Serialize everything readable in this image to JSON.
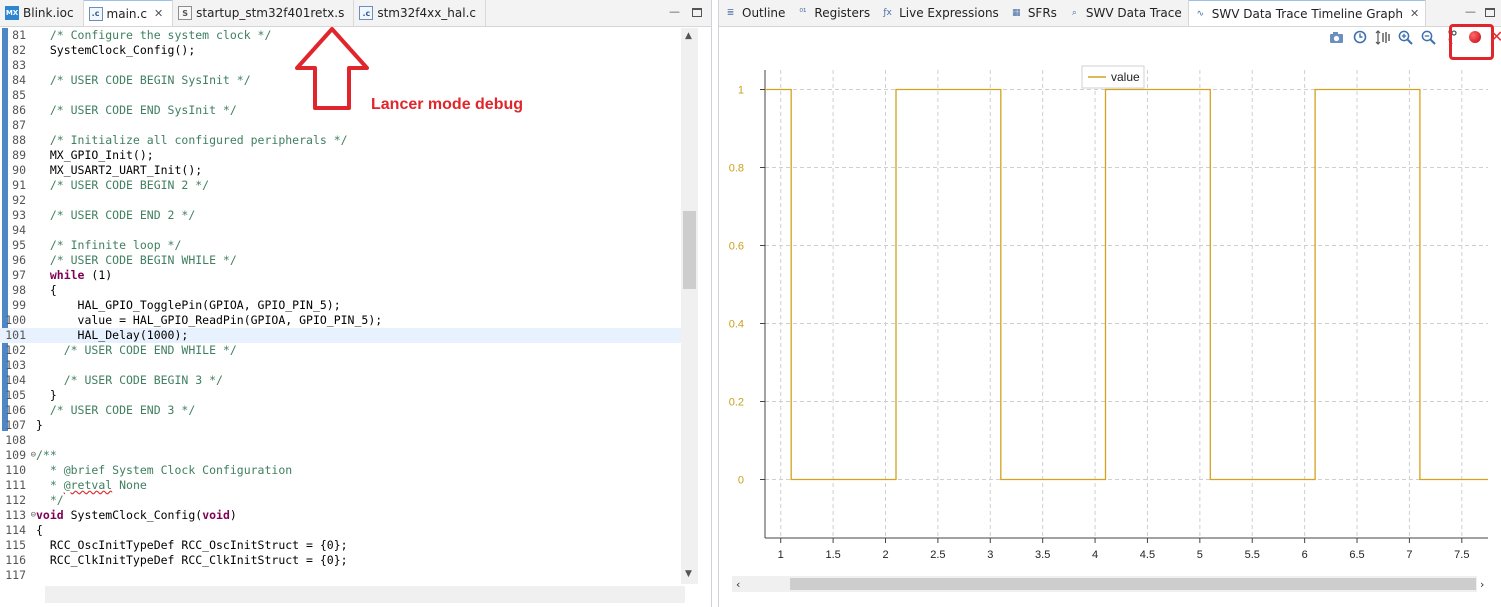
{
  "editor": {
    "tabs": [
      {
        "label": "Blink.ioc",
        "icon": "mx-file-icon",
        "active": false,
        "closable": false
      },
      {
        "label": "main.c",
        "icon": "c-file-icon",
        "active": true,
        "closable": true
      },
      {
        "label": "startup_stm32f401retx.s",
        "icon": "s-file-icon",
        "active": false,
        "closable": false
      },
      {
        "label": "stm32f4xx_hal.c",
        "icon": "c-file-icon",
        "active": false,
        "closable": false
      }
    ],
    "code_lines": [
      {
        "num": "81",
        "text": "  /* Configure the system clock */",
        "kind": "comment"
      },
      {
        "num": "82",
        "text": "  SystemClock_Config();",
        "kind": "code"
      },
      {
        "num": "83",
        "text": "",
        "kind": "code"
      },
      {
        "num": "84",
        "text": "  /* USER CODE BEGIN SysInit */",
        "kind": "comment"
      },
      {
        "num": "85",
        "text": "",
        "kind": "code"
      },
      {
        "num": "86",
        "text": "  /* USER CODE END SysInit */",
        "kind": "comment"
      },
      {
        "num": "87",
        "text": "",
        "kind": "code"
      },
      {
        "num": "88",
        "text": "  /* Initialize all configured peripherals */",
        "kind": "comment"
      },
      {
        "num": "89",
        "text": "  MX_GPIO_Init();",
        "kind": "code"
      },
      {
        "num": "90",
        "text": "  MX_USART2_UART_Init();",
        "kind": "code"
      },
      {
        "num": "91",
        "text": "  /* USER CODE BEGIN 2 */",
        "kind": "comment"
      },
      {
        "num": "92",
        "text": "",
        "kind": "code"
      },
      {
        "num": "93",
        "text": "  /* USER CODE END 2 */",
        "kind": "comment"
      },
      {
        "num": "94",
        "text": "",
        "kind": "code"
      },
      {
        "num": "95",
        "text": "  /* Infinite loop */",
        "kind": "comment"
      },
      {
        "num": "96",
        "text": "  /* USER CODE BEGIN WHILE */",
        "kind": "comment"
      },
      {
        "num": "97",
        "text": "  while (1)",
        "kind": "while"
      },
      {
        "num": "98",
        "text": "  {",
        "kind": "code"
      },
      {
        "num": "99",
        "text": "      HAL_GPIO_TogglePin(GPIOA, GPIO_PIN_5);",
        "kind": "code"
      },
      {
        "num": "100",
        "text": "      value = HAL_GPIO_ReadPin(GPIOA, GPIO_PIN_5);",
        "kind": "code"
      },
      {
        "num": "101",
        "text": "      HAL_Delay(1000);",
        "kind": "code"
      },
      {
        "num": "102",
        "text": "    /* USER CODE END WHILE */",
        "kind": "comment"
      },
      {
        "num": "103",
        "text": "",
        "kind": "code"
      },
      {
        "num": "104",
        "text": "    /* USER CODE BEGIN 3 */",
        "kind": "comment"
      },
      {
        "num": "105",
        "text": "  }",
        "kind": "code"
      },
      {
        "num": "106",
        "text": "  /* USER CODE END 3 */",
        "kind": "comment"
      },
      {
        "num": "107",
        "text": "}",
        "kind": "code"
      },
      {
        "num": "108",
        "text": "",
        "kind": "code"
      },
      {
        "num": "109",
        "text": "/**",
        "kind": "comment"
      },
      {
        "num": "110",
        "text": "  * @brief System Clock Configuration",
        "kind": "comment"
      },
      {
        "num": "111",
        "text": "  * @retval None",
        "kind": "retval"
      },
      {
        "num": "112",
        "text": "  */",
        "kind": "comment"
      },
      {
        "num": "113",
        "text": "void SystemClock_Config(void)",
        "kind": "void"
      },
      {
        "num": "114",
        "text": "{",
        "kind": "code"
      },
      {
        "num": "115",
        "text": "  RCC_OscInitTypeDef RCC_OscInitStruct = {0};",
        "kind": "code"
      },
      {
        "num": "116",
        "text": "  RCC_ClkInitTypeDef RCC_ClkInitStruct = {0};",
        "kind": "code"
      },
      {
        "num": "117",
        "text": "",
        "kind": "code"
      }
    ],
    "highlighted_line": "101",
    "annotation_text": "Lancer mode debug"
  },
  "right_panel": {
    "tabs": [
      {
        "label": "Outline",
        "icon": "outline-icon"
      },
      {
        "label": "Registers",
        "icon": "registers-icon"
      },
      {
        "label": "Live Expressions",
        "icon": "live-expressions-icon"
      },
      {
        "label": "SFRs",
        "icon": "sfrs-icon"
      },
      {
        "label": "SWV Data Trace",
        "icon": "search-icon"
      },
      {
        "label": "SWV Data Trace Timeline Graph",
        "icon": "timeline-graph-icon",
        "active": true,
        "closable": true
      }
    ],
    "toolbar_icons": [
      "camera-icon",
      "clock-icon",
      "adjust-axis-icon",
      "zoom-in-icon",
      "zoom-out-icon",
      "configure-trace-icon",
      "record-icon"
    ]
  },
  "colors": {
    "annotation_red": "#e0262c",
    "series": "#d4a21e",
    "axis_text": "#c9a11e"
  },
  "chart_data": {
    "type": "line",
    "legend_position": "top",
    "grid": true,
    "xlim": [
      0.85,
      7.75
    ],
    "ylim": [
      -0.15,
      1.05
    ],
    "x_ticks": [
      "1",
      "1.5",
      "2",
      "2.5",
      "3",
      "3.5",
      "4",
      "4.5",
      "5",
      "5.5",
      "6",
      "6.5",
      "7",
      "7.5"
    ],
    "y_ticks": [
      "1",
      "0.8",
      "0.6",
      "0.4",
      "0.2",
      "0"
    ],
    "series": [
      {
        "name": "value",
        "step": true,
        "x": [
          0.85,
          1.1,
          1.1,
          2.1,
          2.1,
          3.1,
          3.1,
          4.1,
          4.1,
          5.1,
          5.1,
          6.1,
          6.1,
          7.1,
          7.1,
          7.75
        ],
        "y": [
          1,
          1,
          0,
          0,
          1,
          1,
          0,
          0,
          1,
          1,
          0,
          0,
          1,
          1,
          0,
          0
        ]
      }
    ]
  }
}
